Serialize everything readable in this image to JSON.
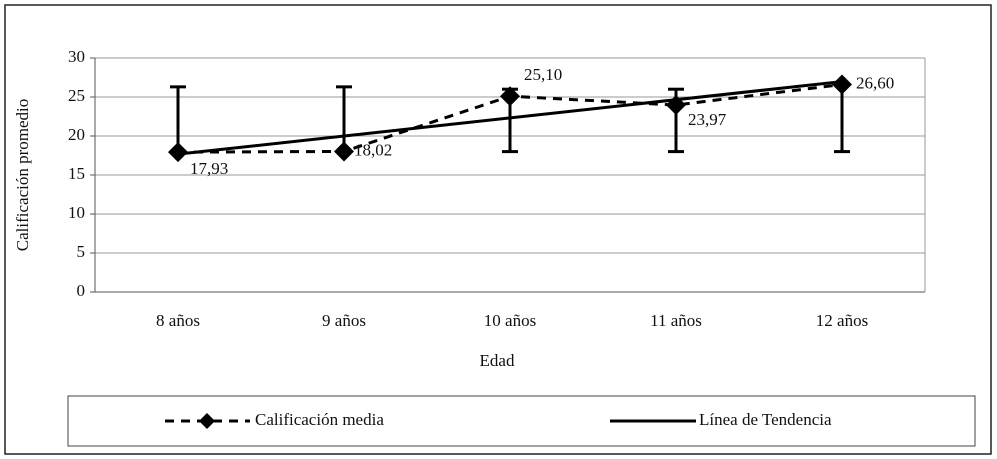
{
  "chart_data": {
    "type": "line",
    "y_label": "Calificación promedio",
    "x_label": "Edad",
    "categories": [
      "8 años",
      "9 años",
      "10 años",
      "11 años",
      "12 años"
    ],
    "series": [
      {
        "name": "Calificación media",
        "color": "#000000",
        "values": [
          17.93,
          18.02,
          25.1,
          23.97,
          26.6
        ],
        "value_labels": [
          "17,93",
          "18,02",
          "25,10",
          "23,97",
          "26,60"
        ]
      }
    ],
    "error_bars": [
      {
        "low": 17.93,
        "high": 26.3
      },
      {
        "low": 18.02,
        "high": 26.3
      },
      {
        "low": 18,
        "high": 26
      },
      {
        "low": 18,
        "high": 26
      },
      {
        "low": 18,
        "high": 26.6
      }
    ],
    "trend_line": {
      "name": "Línea de Tendencia",
      "start": 17.67,
      "end": 26.98
    },
    "ylim": [
      0,
      30
    ],
    "yticks": [
      0,
      5,
      10,
      15,
      20,
      25,
      30
    ],
    "grid": true,
    "legend": "bottom"
  }
}
